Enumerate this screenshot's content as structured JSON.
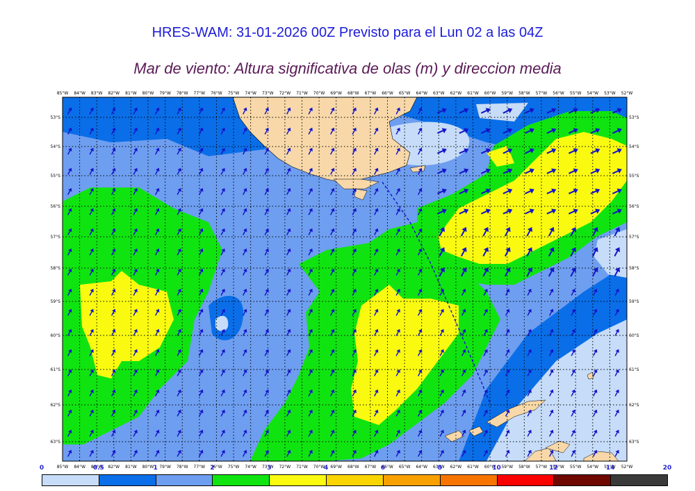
{
  "title": "HRES-WAM: 31-01-2026 00Z Previsto para el Lun 02 a las 04Z",
  "subtitle": "Mar de viento: Altura significativa de olas (m) y direccion media",
  "lon_labels": [
    "85°W",
    "84°W",
    "83°W",
    "82°W",
    "81°W",
    "80°W",
    "79°W",
    "78°W",
    "77°W",
    "76°W",
    "75°W",
    "74°W",
    "73°W",
    "72°W",
    "71°W",
    "70°W",
    "69°W",
    "68°W",
    "67°W",
    "66°W",
    "65°W",
    "64°W",
    "63°W",
    "62°W",
    "61°W",
    "60°W",
    "59°W",
    "58°W",
    "57°W",
    "56°W",
    "55°W",
    "54°W",
    "53°W",
    "52°W"
  ],
  "lat_labels": [
    "53°S",
    "54°S",
    "55°S",
    "56°S",
    "57°S",
    "58°S",
    "59°S",
    "60°S",
    "61°S",
    "62°S",
    "63°S"
  ],
  "colorbar": {
    "levels": [
      "0",
      "0.5",
      "1",
      "2",
      "3",
      "4",
      "6",
      "8",
      "10",
      "12",
      "14",
      "20"
    ],
    "colors": [
      "#c6dcf8",
      "#0a6ee8",
      "#6e9ef0",
      "#10e410",
      "#fafa10",
      "#fad400",
      "#f8a000",
      "#f87400",
      "#fa0000",
      "#6e0800",
      "#3a3a3a"
    ]
  },
  "colors": {
    "land": "#f8d8a8",
    "arrow": "#1414c8",
    "track": "#1414c8"
  }
}
